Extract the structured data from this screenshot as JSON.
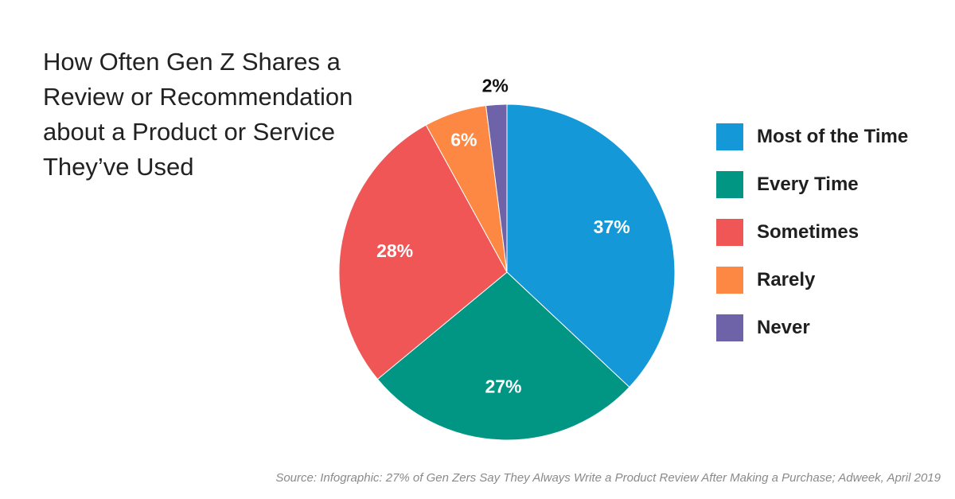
{
  "chart_data": {
    "type": "pie",
    "title_lines": [
      "How Often Gen Z Shares a",
      "Review or Recommendation",
      "about a Product or Service",
      "They’ve Used"
    ],
    "categories": [
      "Most of the Time",
      "Every Time",
      "Sometimes",
      "Rarely",
      "Never"
    ],
    "values": [
      37,
      27,
      28,
      6,
      2
    ],
    "value_labels": [
      "37%",
      "27%",
      "28%",
      "6%",
      "2%"
    ],
    "colors": [
      "#1598d7",
      "#009683",
      "#f15656",
      "#fd8843",
      "#6e63a8"
    ],
    "legend_position": "right",
    "source": "Source: Infographic: 27% of Gen Zers Say They Always Write a Product Review After Making a Purchase; Adweek, April 2019"
  }
}
